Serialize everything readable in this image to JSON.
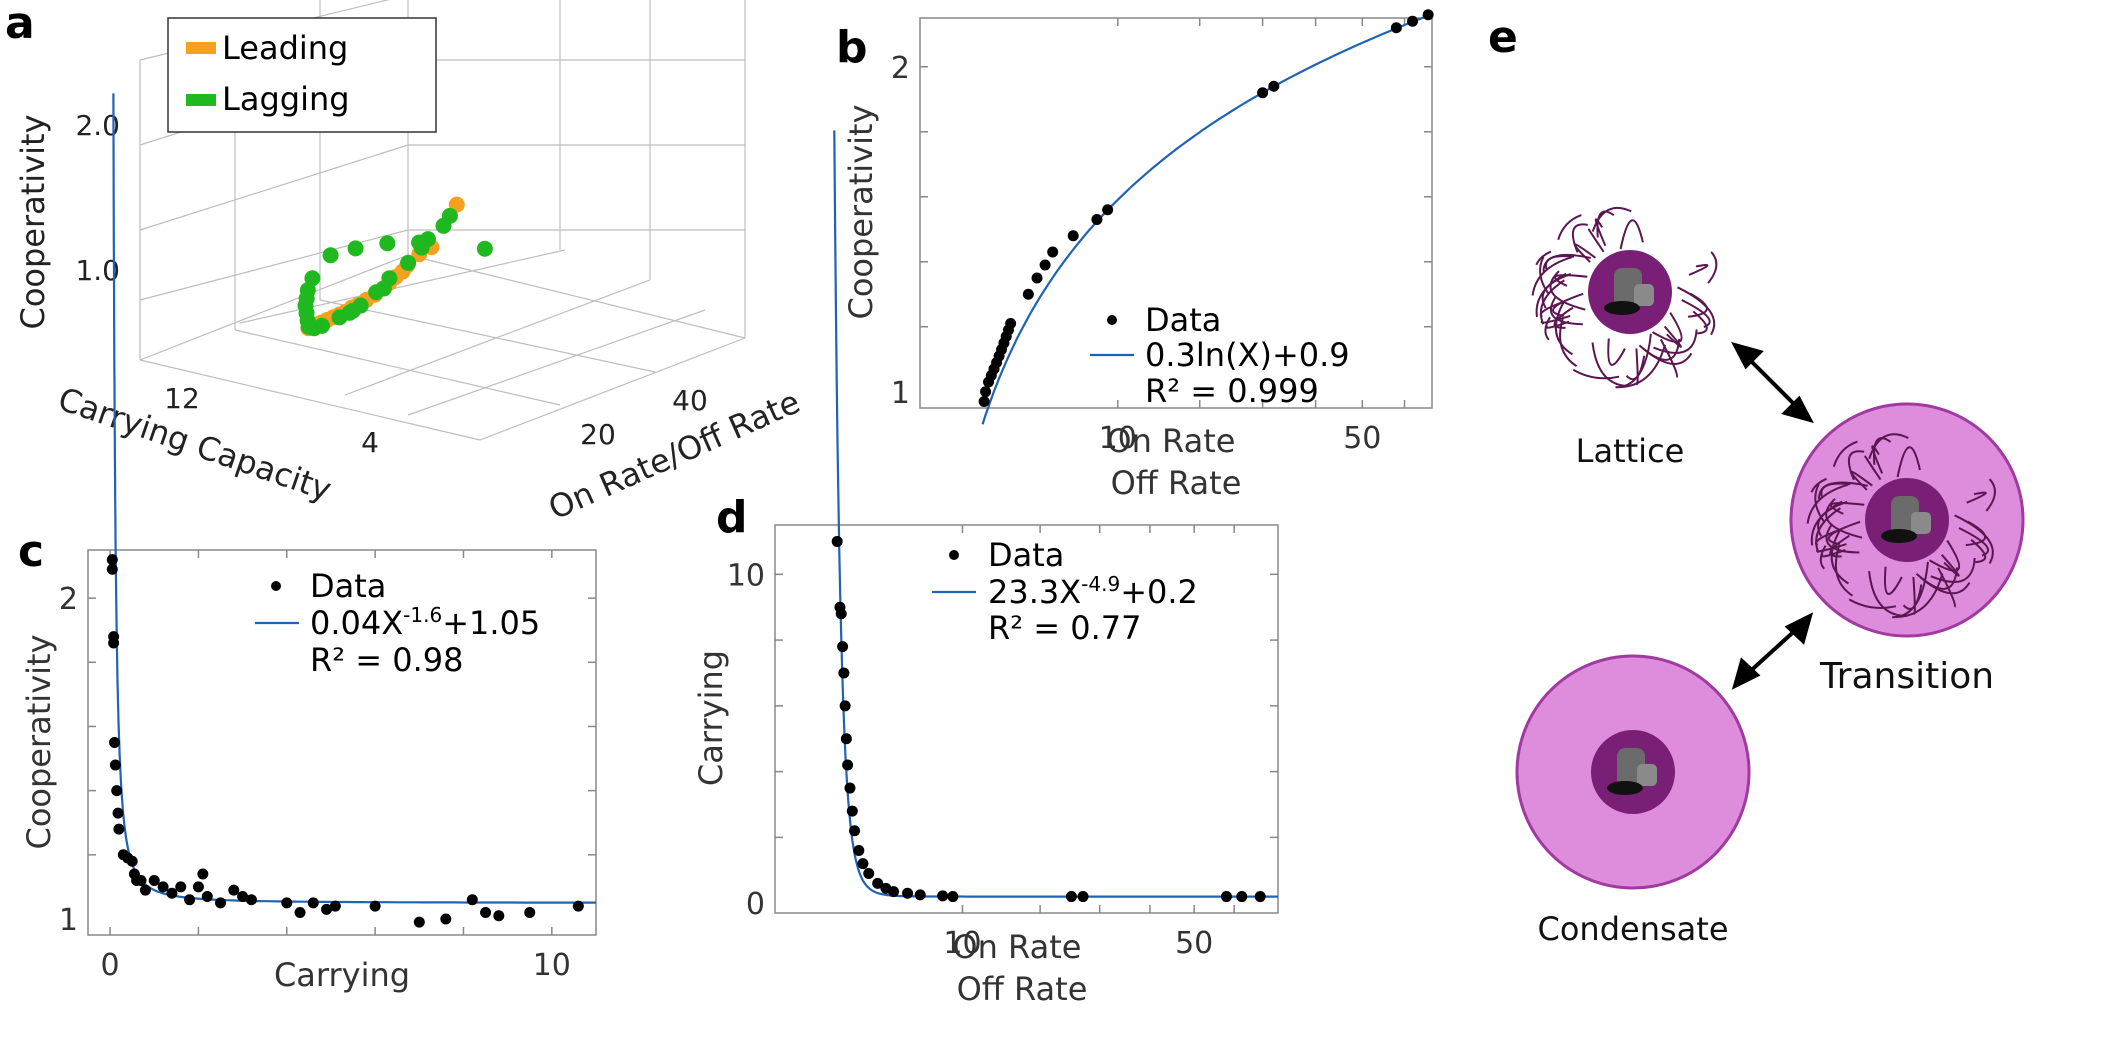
{
  "panels": {
    "a": "a",
    "b": "b",
    "c": "c",
    "d": "d",
    "e": "e"
  },
  "chart_data": [
    {
      "panel": "a",
      "type": "scatter",
      "xlabel": "Carrying Capacity",
      "ylabel": "On Rate/Off Rate",
      "zlabel": "Cooperativity",
      "x_ticks": [
        "12",
        "4"
      ],
      "y_ticks": [
        "20",
        "40"
      ],
      "z_ticks": [
        "1.0",
        "2.0"
      ],
      "legend": {
        "placement": "top-left",
        "entries": [
          "Leading",
          "Lagging"
        ]
      },
      "grid": true,
      "series": [
        {
          "name": "Leading",
          "color": "#f5a01e",
          "points": [
            [
              11.9,
              7.5,
              1.2
            ],
            [
              10.0,
              10.0,
              1.05
            ],
            [
              9.0,
              11.5,
              1.08
            ],
            [
              8.0,
              13.0,
              1.08
            ],
            [
              7.7,
              13.3,
              1.06
            ],
            [
              7.3,
              13.6,
              1.05
            ],
            [
              6.9,
              14.0,
              1.04
            ],
            [
              6.5,
              14.4,
              1.03
            ],
            [
              6.0,
              14.8,
              1.02
            ],
            [
              5.5,
              15.2,
              1.02
            ],
            [
              5.0,
              15.6,
              1.02
            ],
            [
              4.6,
              16.0,
              1.03
            ],
            [
              4.2,
              16.4,
              1.03
            ],
            [
              3.8,
              16.8,
              1.04
            ],
            [
              3.4,
              17.2,
              1.05
            ],
            [
              3.0,
              17.6,
              1.06
            ],
            [
              2.6,
              18.0,
              1.07
            ],
            [
              2.2,
              18.4,
              1.08
            ],
            [
              1.8,
              18.8,
              1.09
            ]
          ]
        },
        {
          "name": "Lagging",
          "color": "#1fb81f",
          "points": [
            [
              11.5,
              7.8,
              1.15
            ],
            [
              11.0,
              8.5,
              1.12
            ],
            [
              10.0,
              9.5,
              1.1
            ],
            [
              9.5,
              10.2,
              1.08
            ],
            [
              8.5,
              11.5,
              1.05
            ],
            [
              7.2,
              13.0,
              1.04
            ],
            [
              6.5,
              14.5,
              1.03
            ],
            [
              6.0,
              15.0,
              1.04
            ],
            [
              5.0,
              16.0,
              1.02
            ],
            [
              4.5,
              16.5,
              1.02
            ],
            [
              4.2,
              17.0,
              1.03
            ],
            [
              3.5,
              17.8,
              1.05
            ],
            [
              2.5,
              18.5,
              1.06
            ],
            [
              2.0,
              19.0,
              1.08
            ],
            [
              1.6,
              19.5,
              1.12
            ],
            [
              1.4,
              20.0,
              1.18
            ],
            [
              1.2,
              20.5,
              1.25
            ],
            [
              1.0,
              21.0,
              1.32
            ],
            [
              0.9,
              21.5,
              1.38
            ],
            [
              0.8,
              22.0,
              1.45
            ],
            [
              0.7,
              23.0,
              1.55
            ],
            [
              0.6,
              26.0,
              1.75
            ],
            [
              0.5,
              30.0,
              1.85
            ],
            [
              0.4,
              35.0,
              1.95
            ],
            [
              0.3,
              40.0,
              2.02
            ],
            [
              0.2,
              50.0,
              2.1
            ]
          ]
        }
      ]
    },
    {
      "panel": "b",
      "type": "scatter",
      "xlabel": "On Rate\nOff Rate",
      "ylabel": "Cooperativity",
      "xlim": [
        0,
        67
      ],
      "ylim": [
        0.95,
        2.15
      ],
      "x_ticks": [
        "10",
        "50"
      ],
      "y_ticks": [
        "1",
        "2"
      ],
      "legend": {
        "placement": "bottom-right",
        "entries": [
          "Data",
          "0.3ln(X)+0.9",
          "R² = 0.999"
        ]
      },
      "fit": {
        "label": "0.3ln(X)+0.9",
        "color": "#1f63b4",
        "r2": "R² = 0.999"
      },
      "points": [
        [
          1.05,
          0.97
        ],
        [
          1.1,
          1.0
        ],
        [
          1.2,
          1.03
        ],
        [
          1.3,
          1.05
        ],
        [
          1.4,
          1.07
        ],
        [
          1.5,
          1.09
        ],
        [
          1.6,
          1.11
        ],
        [
          1.7,
          1.13
        ],
        [
          1.8,
          1.15
        ],
        [
          1.9,
          1.17
        ],
        [
          2.0,
          1.19
        ],
        [
          2.1,
          1.21
        ],
        [
          3.0,
          1.3
        ],
        [
          3.5,
          1.35
        ],
        [
          4.0,
          1.39
        ],
        [
          4.5,
          1.43
        ],
        [
          6.0,
          1.48
        ],
        [
          8.0,
          1.53
        ],
        [
          9.0,
          1.56
        ],
        [
          30.0,
          1.92
        ],
        [
          32.0,
          1.94
        ],
        [
          58.0,
          2.12
        ],
        [
          62.0,
          2.14
        ],
        [
          66.0,
          2.16
        ]
      ]
    },
    {
      "panel": "c",
      "type": "scatter",
      "xlabel": "Carrying",
      "ylabel": "Cooperativity",
      "xlim": [
        -0.5,
        11
      ],
      "ylim": [
        0.95,
        2.15
      ],
      "x_ticks": [
        "0",
        "10"
      ],
      "y_ticks": [
        "1",
        "2"
      ],
      "legend": {
        "placement": "top-right",
        "entries": [
          "Data",
          "0.04X^-1.6+1.05",
          "R² = 0.98"
        ]
      },
      "fit": {
        "label_base": "0.04X",
        "label_exp": "-1.6",
        "label_tail": "+1.05",
        "color": "#1f63b4",
        "r2": "R² = 0.98"
      },
      "points": [
        [
          0.05,
          2.12
        ],
        [
          0.05,
          2.09
        ],
        [
          0.08,
          1.88
        ],
        [
          0.08,
          1.86
        ],
        [
          0.1,
          1.55
        ],
        [
          0.12,
          1.48
        ],
        [
          0.15,
          1.4
        ],
        [
          0.18,
          1.33
        ],
        [
          0.2,
          1.28
        ],
        [
          0.3,
          1.2
        ],
        [
          0.4,
          1.19
        ],
        [
          0.5,
          1.18
        ],
        [
          0.55,
          1.14
        ],
        [
          0.6,
          1.12
        ],
        [
          0.7,
          1.12
        ],
        [
          0.8,
          1.09
        ],
        [
          1.0,
          1.12
        ],
        [
          1.2,
          1.1
        ],
        [
          1.4,
          1.08
        ],
        [
          1.6,
          1.1
        ],
        [
          1.8,
          1.06
        ],
        [
          2.0,
          1.1
        ],
        [
          2.1,
          1.14
        ],
        [
          2.2,
          1.07
        ],
        [
          2.5,
          1.05
        ],
        [
          2.8,
          1.09
        ],
        [
          3.0,
          1.07
        ],
        [
          3.2,
          1.06
        ],
        [
          4.0,
          1.05
        ],
        [
          4.3,
          1.02
        ],
        [
          4.6,
          1.05
        ],
        [
          4.9,
          1.03
        ],
        [
          5.1,
          1.04
        ],
        [
          6.0,
          1.04
        ],
        [
          7.0,
          0.99
        ],
        [
          7.6,
          1.0
        ],
        [
          8.2,
          1.06
        ],
        [
          8.5,
          1.02
        ],
        [
          8.8,
          1.01
        ],
        [
          9.5,
          1.02
        ],
        [
          10.6,
          1.04
        ]
      ]
    },
    {
      "panel": "d",
      "type": "scatter",
      "xlabel": "On Rate\nOff Rate",
      "ylabel": "Carrying",
      "xlim": [
        0,
        72
      ],
      "ylim": [
        -0.3,
        11.5
      ],
      "x_ticks": [
        "10",
        "50"
      ],
      "y_ticks": [
        "0",
        "10"
      ],
      "legend": {
        "placement": "top-right",
        "entries": [
          "Data",
          "23.3X^-4.9+0.2",
          "R² = 0.77"
        ]
      },
      "fit": {
        "label_base": "23.3X",
        "label_exp": "-4.9",
        "label_tail": "+0.2",
        "color": "#1f63b4",
        "r2": "R² = 0.77"
      },
      "points": [
        [
          1.1,
          11.0
        ],
        [
          1.2,
          9.0
        ],
        [
          1.25,
          8.8
        ],
        [
          1.3,
          7.8
        ],
        [
          1.35,
          7.0
        ],
        [
          1.4,
          6.0
        ],
        [
          1.45,
          5.0
        ],
        [
          1.5,
          4.2
        ],
        [
          1.6,
          3.5
        ],
        [
          1.7,
          2.8
        ],
        [
          1.8,
          2.2
        ],
        [
          2.0,
          1.6
        ],
        [
          2.2,
          1.2
        ],
        [
          2.5,
          0.9
        ],
        [
          3.0,
          0.6
        ],
        [
          3.5,
          0.45
        ],
        [
          4.0,
          0.35
        ],
        [
          5.0,
          0.3
        ],
        [
          6.0,
          0.25
        ],
        [
          8.0,
          0.22
        ],
        [
          9.0,
          0.2
        ],
        [
          25.0,
          0.2
        ],
        [
          27.0,
          0.2
        ],
        [
          58.0,
          0.2
        ],
        [
          62.0,
          0.2
        ],
        [
          67.0,
          0.2
        ]
      ]
    }
  ],
  "diagram_e": {
    "labels": {
      "lattice": "Lattice",
      "transition": "Transition",
      "condensate": "Condensate"
    },
    "colors": {
      "droplet_fill": "#de8cdc",
      "droplet_edge": "#a13aa0",
      "core": "#7a1f76",
      "mesh": "#5a1650"
    }
  }
}
